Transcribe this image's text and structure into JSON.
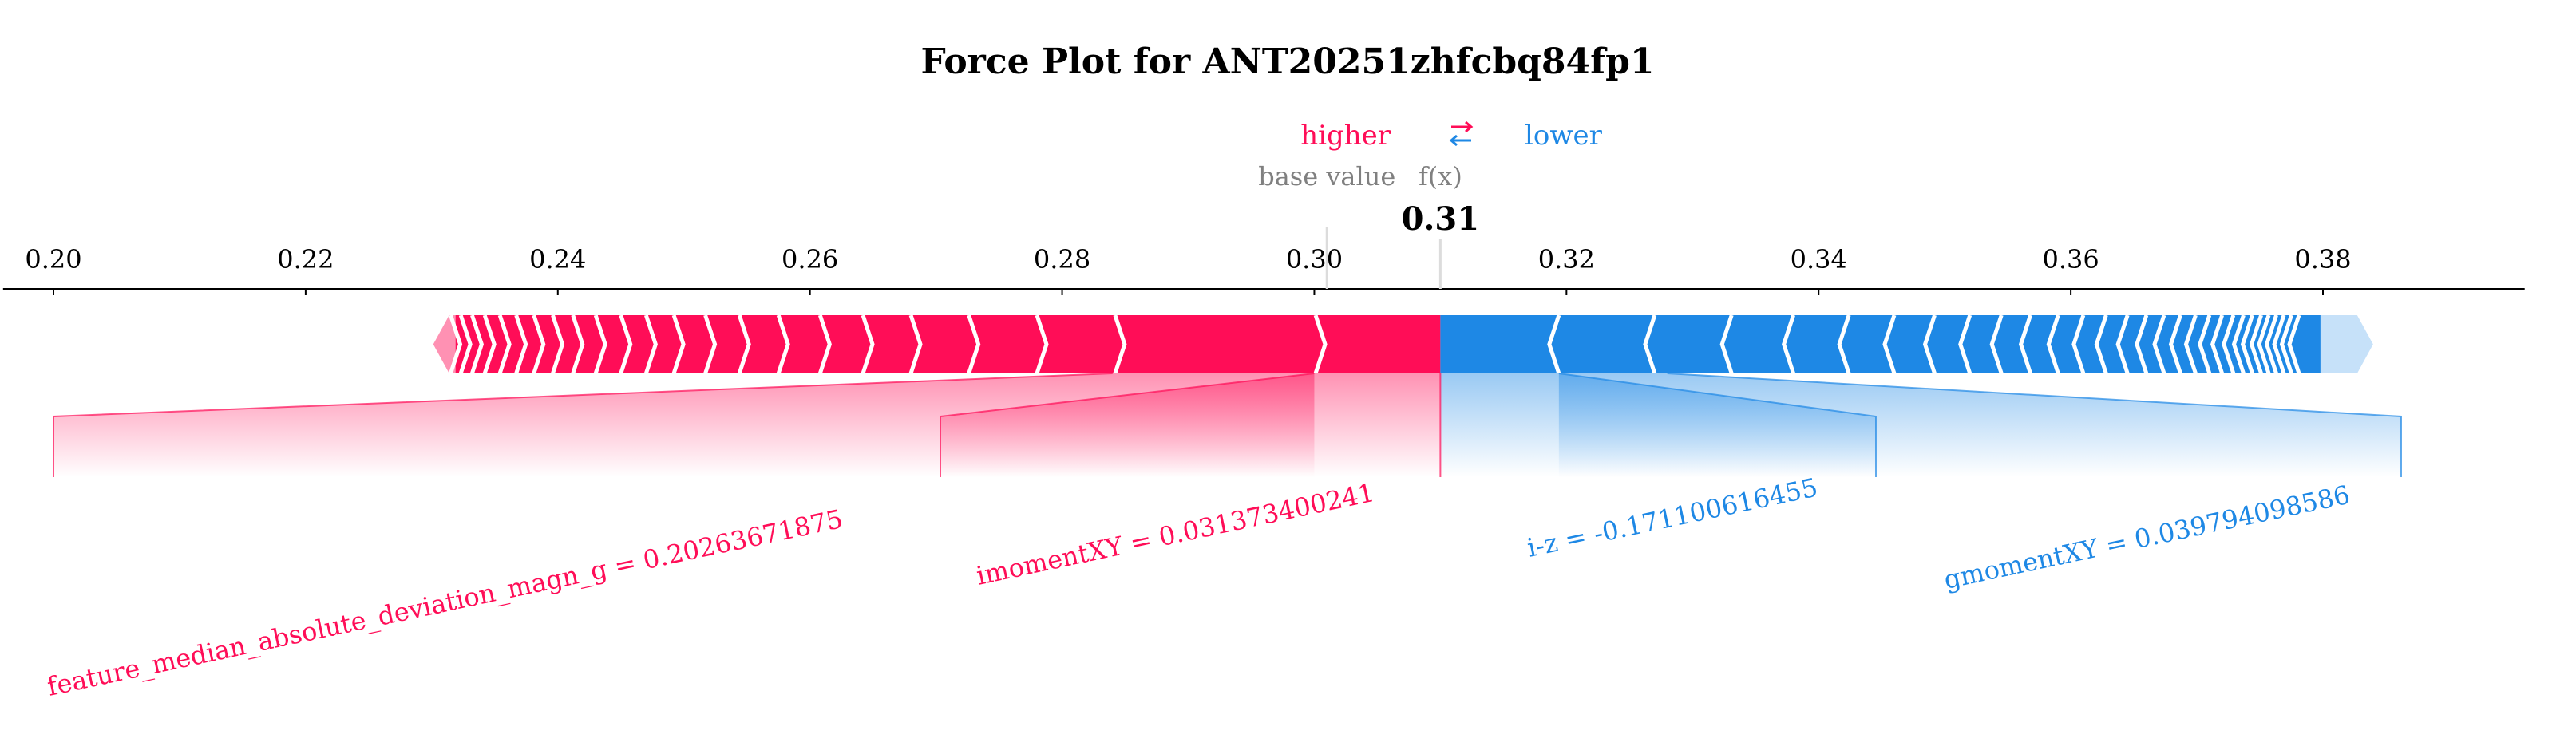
{
  "chart_data": {
    "type": "force",
    "title": "Force Plot for ANT20251zhfcbq84fp1",
    "legend": {
      "higher_label": "higher",
      "lower_label": "lower",
      "higher_color": "#ff0d57",
      "lower_color": "#1e88e5"
    },
    "base_value_label": "base value",
    "fx_label": "f(x)",
    "fx_value": 0.31,
    "fx_display": "0.31",
    "base_value": 0.301,
    "xlim": [
      0.196,
      0.396
    ],
    "x_ticks": [
      0.2,
      0.22,
      0.24,
      0.26,
      0.28,
      0.3,
      0.32,
      0.34,
      0.36,
      0.38
    ],
    "x_tick_labels": [
      "0.20",
      "0.22",
      "0.24",
      "0.26",
      "0.28",
      "0.30",
      "0.32",
      "0.34",
      "0.36",
      "0.38"
    ],
    "positive_range": [
      0.2305,
      0.31
    ],
    "negative_range": [
      0.31,
      0.3836
    ],
    "labeled_features": [
      {
        "text": "feature_median_absolute_deviation_magn_g = 0.20263671875",
        "effect": "higher",
        "start": 0.284,
        "end": 0.3
      },
      {
        "text": "imomentXY = 0.031373400241",
        "effect": "higher",
        "start": 0.3,
        "end": 0.31
      },
      {
        "text": "i-z = -0.171100616455",
        "effect": "lower",
        "start": 0.31,
        "end": 0.3194
      },
      {
        "text": "gmomentXY = 0.039794098586",
        "effect": "lower",
        "start": 0.3194,
        "end": 0.328
      }
    ]
  }
}
